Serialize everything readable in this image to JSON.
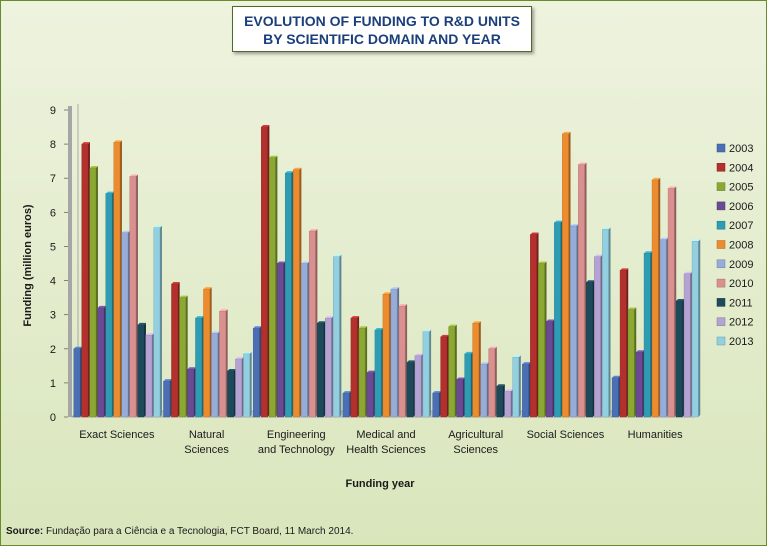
{
  "chart_data": {
    "type": "bar",
    "title": "EVOLUTION OF FUNDING TO R&D UNITS BY SCIENTIFIC DOMAIN AND YEAR",
    "title_lines": [
      "EVOLUTION OF FUNDING TO R&D UNITS",
      "BY SCIENTIFIC DOMAIN AND YEAR"
    ],
    "xlabel": "Funding year",
    "ylabel": "Funding (million euros)",
    "ylim": [
      0,
      9
    ],
    "yticks": [
      "0",
      "1",
      "2",
      "3",
      "4",
      "5",
      "6",
      "7",
      "8",
      "9"
    ],
    "categories": [
      [
        "Exact Sciences"
      ],
      [
        "Natural",
        "Sciences"
      ],
      [
        "Engineering",
        "and Technology"
      ],
      [
        "Medical and",
        "Health Sciences"
      ],
      [
        "Agricultural",
        "Sciences"
      ],
      [
        "Social Sciences"
      ],
      [
        "Humanities"
      ]
    ],
    "grid": false,
    "legend_position": "right",
    "series": [
      {
        "name": "2003",
        "color": "#4a6fb5",
        "values": [
          2.0,
          1.05,
          2.6,
          0.7,
          0.7,
          1.55,
          1.15
        ]
      },
      {
        "name": "2004",
        "color": "#b3302d",
        "values": [
          8.0,
          3.9,
          8.5,
          2.9,
          2.35,
          5.35,
          4.3
        ]
      },
      {
        "name": "2005",
        "color": "#8aa832",
        "values": [
          7.3,
          3.5,
          7.6,
          2.6,
          2.65,
          4.5,
          3.15
        ]
      },
      {
        "name": "2006",
        "color": "#6a4a96",
        "values": [
          3.2,
          1.4,
          4.5,
          1.3,
          1.1,
          2.8,
          1.9
        ]
      },
      {
        "name": "2007",
        "color": "#2e9db3",
        "values": [
          6.55,
          2.9,
          7.15,
          2.55,
          1.85,
          5.7,
          4.8
        ]
      },
      {
        "name": "2008",
        "color": "#ec8c2f",
        "values": [
          8.05,
          3.75,
          7.25,
          3.6,
          2.75,
          8.3,
          6.95
        ]
      },
      {
        "name": "2009",
        "color": "#96acd9",
        "values": [
          5.4,
          2.45,
          4.5,
          3.75,
          1.55,
          5.6,
          5.2
        ]
      },
      {
        "name": "2010",
        "color": "#db9090",
        "values": [
          7.05,
          3.1,
          5.45,
          3.25,
          2.0,
          7.4,
          6.7
        ]
      },
      {
        "name": "2011",
        "color": "#1d4a5b",
        "values": [
          2.7,
          1.35,
          2.75,
          1.6,
          0.9,
          3.95,
          3.4
        ]
      },
      {
        "name": "2012",
        "color": "#b4a2d2",
        "values": [
          2.4,
          1.7,
          2.9,
          1.8,
          0.75,
          4.7,
          4.2
        ]
      },
      {
        "name": "2013",
        "color": "#92cfe0",
        "values": [
          5.55,
          1.85,
          4.7,
          2.5,
          1.75,
          5.5,
          5.15
        ]
      }
    ]
  },
  "source": {
    "label": "Source:",
    "text": " Fundação para a Ciência e a Tecnologia, FCT Board, 11 March  2014."
  }
}
